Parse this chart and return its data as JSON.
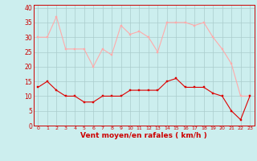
{
  "x": [
    0,
    1,
    2,
    3,
    4,
    5,
    6,
    7,
    8,
    9,
    10,
    11,
    12,
    13,
    14,
    15,
    16,
    17,
    18,
    19,
    20,
    21,
    22,
    23
  ],
  "avg_wind": [
    13,
    15,
    12,
    10,
    10,
    8,
    8,
    10,
    10,
    10,
    12,
    12,
    12,
    12,
    15,
    16,
    13,
    13,
    13,
    11,
    10,
    5,
    2,
    10
  ],
  "gust_wind": [
    30,
    30,
    37,
    26,
    26,
    26,
    20,
    26,
    24,
    34,
    31,
    32,
    30,
    25,
    35,
    35,
    35,
    34,
    35,
    30,
    26,
    21,
    10,
    10
  ],
  "avg_color": "#dd0000",
  "gust_color": "#ffaaaa",
  "bg_color": "#cceeee",
  "grid_color": "#aacccc",
  "xlabel": "Vent moyen/en rafales ( km/h )",
  "xlabel_color": "#cc0000",
  "tick_color": "#cc0000",
  "yticks": [
    0,
    5,
    10,
    15,
    20,
    25,
    30,
    35,
    40
  ],
  "ylim": [
    0,
    41
  ],
  "xlim": [
    -0.5,
    23.5
  ]
}
